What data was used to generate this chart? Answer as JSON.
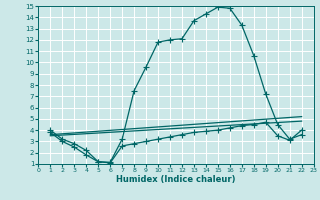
{
  "xlabel": "Humidex (Indice chaleur)",
  "background_color": "#cce8e8",
  "grid_color": "#ffffff",
  "line_color": "#006666",
  "xlim": [
    0,
    23
  ],
  "ylim": [
    1,
    15
  ],
  "xticks": [
    0,
    1,
    2,
    3,
    4,
    5,
    6,
    7,
    8,
    9,
    10,
    11,
    12,
    13,
    14,
    15,
    16,
    17,
    18,
    19,
    20,
    21,
    22,
    23
  ],
  "yticks": [
    1,
    2,
    3,
    4,
    5,
    6,
    7,
    8,
    9,
    10,
    11,
    12,
    13,
    14,
    15
  ],
  "line1_x": [
    1,
    2,
    3,
    4,
    5,
    6,
    7,
    8,
    9,
    10,
    11,
    12,
    13,
    14,
    15,
    16,
    17,
    18,
    19,
    20,
    21,
    22
  ],
  "line1_y": [
    4.0,
    3.2,
    2.8,
    2.2,
    1.2,
    1.15,
    3.2,
    7.5,
    9.6,
    11.8,
    12.0,
    12.1,
    13.7,
    14.3,
    14.9,
    14.8,
    13.3,
    10.6,
    7.2,
    4.5,
    3.2,
    3.6
  ],
  "line2_x": [
    1,
    2,
    3,
    4,
    5,
    6,
    7,
    8,
    9,
    10,
    11,
    12,
    13,
    14,
    15,
    16,
    17,
    18,
    19,
    20,
    21,
    22
  ],
  "line2_y": [
    3.8,
    3.0,
    2.5,
    1.8,
    1.2,
    1.1,
    2.6,
    2.8,
    3.0,
    3.2,
    3.4,
    3.6,
    3.8,
    3.9,
    4.0,
    4.2,
    4.4,
    4.5,
    4.7,
    3.5,
    3.1,
    4.0
  ],
  "line3_x": [
    1,
    22
  ],
  "line3_y": [
    3.6,
    5.2
  ],
  "line4_x": [
    1,
    22
  ],
  "line4_y": [
    3.5,
    4.8
  ]
}
